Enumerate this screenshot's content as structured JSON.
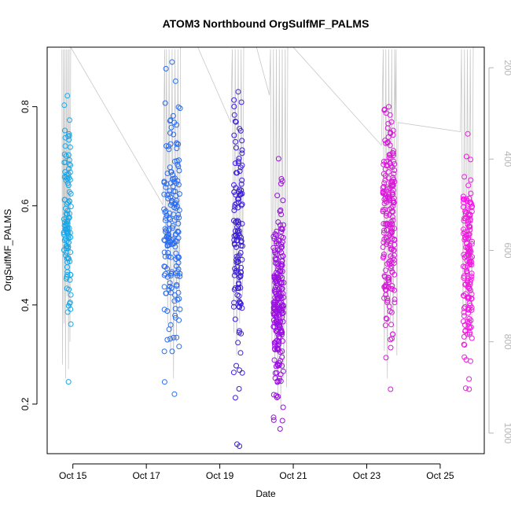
{
  "chart_data": {
    "type": "scatter",
    "title": "ATOM3 Northbound OrgSulfMF_PALMS",
    "xlabel": "Date",
    "ylabel": "OrgSulfMF_PALMS",
    "x_ticks": [
      "Oct 15",
      "Oct 17",
      "Oct 19",
      "Oct 21",
      "Oct 23",
      "Oct 25"
    ],
    "y_ticks": [
      "0.2",
      "0.4",
      "0.6",
      "0.8"
    ],
    "y_right_ticks": [
      "200",
      "400",
      "600",
      "800",
      "1000"
    ],
    "ylim": [
      0.1,
      0.92
    ],
    "y_right_lim": [
      1045,
      155
    ],
    "x_range_days": [
      14.3,
      26.2
    ],
    "pressure_trace_color": "#c8c8c8",
    "right_axis_color": "#b5b5b5",
    "series": [
      {
        "date": "Oct 14",
        "color": "#1aa6e6",
        "x_center": 14.85,
        "x_spread": 0.1,
        "n": 110,
        "y_center": 0.58,
        "y_sd": 0.11,
        "y_min": 0.245,
        "y_max": 0.822
      },
      {
        "date": "Oct 17",
        "color": "#2a6cf0",
        "x_center": 17.7,
        "x_spread": 0.22,
        "n": 180,
        "y_center": 0.56,
        "y_sd": 0.11,
        "y_min": 0.22,
        "y_max": 0.89
      },
      {
        "date": "Oct 19",
        "color": "#3c1ed8",
        "x_center": 19.5,
        "x_spread": 0.12,
        "n": 130,
        "y_center": 0.52,
        "y_sd": 0.12,
        "y_min": 0.115,
        "y_max": 0.83
      },
      {
        "date": "Oct 20",
        "color": "#9a10e0",
        "x_center": 20.6,
        "x_spread": 0.14,
        "n": 230,
        "y_center": 0.4,
        "y_sd": 0.1,
        "y_min": 0.15,
        "y_max": 0.695
      },
      {
        "date": "Oct 23",
        "color": "#d81ad8",
        "x_center": 23.6,
        "x_spread": 0.16,
        "n": 200,
        "y_center": 0.56,
        "y_sd": 0.11,
        "y_min": 0.23,
        "y_max": 0.8
      },
      {
        "date": "Oct 25",
        "color": "#f01ae0",
        "x_center": 25.75,
        "x_spread": 0.12,
        "n": 160,
        "y_center": 0.48,
        "y_sd": 0.1,
        "y_min": 0.23,
        "y_max": 0.745
      }
    ],
    "pressure_path": [
      [
        14.7,
        160
      ],
      [
        14.72,
        850
      ],
      [
        14.74,
        160
      ],
      [
        14.76,
        760
      ],
      [
        14.78,
        160
      ],
      [
        14.8,
        880
      ],
      [
        14.82,
        160
      ],
      [
        14.84,
        700
      ],
      [
        14.86,
        160
      ],
      [
        14.88,
        860
      ],
      [
        14.9,
        160
      ],
      [
        14.92,
        800
      ],
      [
        14.94,
        155
      ],
      [
        17.45,
        500
      ],
      [
        17.5,
        160
      ],
      [
        17.52,
        620
      ],
      [
        17.55,
        160
      ],
      [
        17.58,
        760
      ],
      [
        17.62,
        160
      ],
      [
        17.66,
        820
      ],
      [
        17.7,
        160
      ],
      [
        17.74,
        880
      ],
      [
        17.78,
        160
      ],
      [
        17.82,
        800
      ],
      [
        17.86,
        160
      ],
      [
        17.9,
        740
      ],
      [
        17.93,
        155
      ],
      [
        18.4,
        155
      ],
      [
        19.3,
        320
      ],
      [
        19.34,
        160
      ],
      [
        19.38,
        780
      ],
      [
        19.42,
        160
      ],
      [
        19.46,
        830
      ],
      [
        19.5,
        160
      ],
      [
        19.54,
        760
      ],
      [
        19.58,
        160
      ],
      [
        19.62,
        700
      ],
      [
        19.65,
        155
      ],
      [
        20.0,
        155
      ],
      [
        20.35,
        260
      ],
      [
        20.38,
        160
      ],
      [
        20.42,
        800
      ],
      [
        20.46,
        160
      ],
      [
        20.5,
        880
      ],
      [
        20.54,
        160
      ],
      [
        20.58,
        920
      ],
      [
        20.62,
        160
      ],
      [
        20.66,
        950
      ],
      [
        20.7,
        160
      ],
      [
        20.74,
        880
      ],
      [
        20.78,
        160
      ],
      [
        20.82,
        900
      ],
      [
        20.85,
        155
      ],
      [
        21.0,
        155
      ],
      [
        23.4,
        370
      ],
      [
        23.45,
        160
      ],
      [
        23.48,
        820
      ],
      [
        23.52,
        160
      ],
      [
        23.56,
        880
      ],
      [
        23.6,
        160
      ],
      [
        23.64,
        760
      ],
      [
        23.68,
        160
      ],
      [
        23.72,
        800
      ],
      [
        23.76,
        160
      ],
      [
        23.78,
        320
      ],
      [
        23.8,
        160
      ],
      [
        23.82,
        830
      ],
      [
        23.85,
        320
      ],
      [
        25.55,
        340
      ],
      [
        25.58,
        160
      ],
      [
        25.62,
        740
      ],
      [
        25.66,
        160
      ],
      [
        25.7,
        800
      ],
      [
        25.74,
        160
      ],
      [
        25.78,
        700
      ],
      [
        25.82,
        160
      ],
      [
        25.86,
        760
      ],
      [
        25.9,
        155
      ]
    ]
  }
}
